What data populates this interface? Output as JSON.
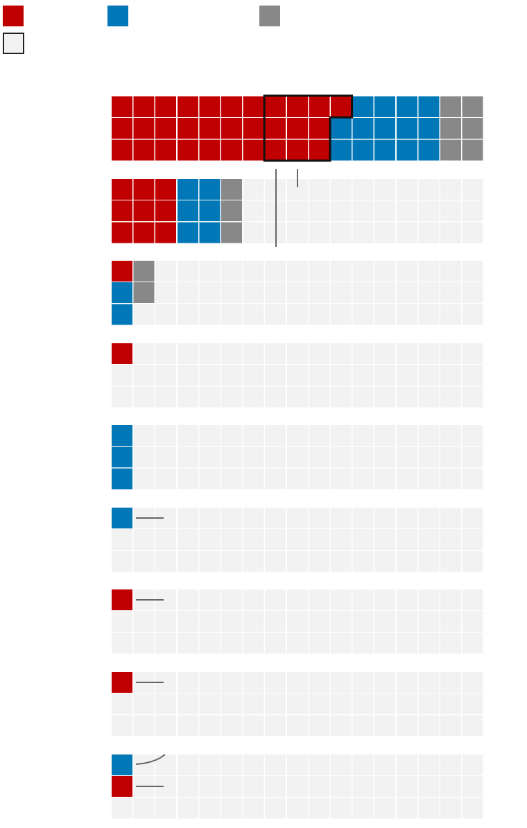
{
  "colors": {
    "party_a": "#c00000",
    "party_b": "#0077b6",
    "party_c": "#888888",
    "empty": "#f2f2f2",
    "outline": "#111111",
    "leader": "#666666"
  },
  "legend": [
    {
      "color_key": "party_a",
      "label": ""
    },
    {
      "color_key": "party_b",
      "label": ""
    },
    {
      "color_key": "party_c",
      "label": ""
    },
    {
      "color_key": "empty",
      "label": ""
    }
  ],
  "chart_data": {
    "type": "waffle",
    "columns": 17,
    "rows_per_group": 3,
    "fill_order": "column-major",
    "groups": [
      {
        "name": "",
        "segments": [
          {
            "key": "party_a",
            "count": 31
          },
          {
            "key": "party_b",
            "count": 14
          },
          {
            "key": "party_c",
            "count": 6
          }
        ]
      },
      {
        "name": "",
        "segments": [
          {
            "key": "party_a",
            "count": 9
          },
          {
            "key": "party_b",
            "count": 6
          },
          {
            "key": "party_c",
            "count": 3
          }
        ]
      },
      {
        "name": "",
        "segments": [
          {
            "key": "party_a",
            "count": 1
          },
          {
            "key": "party_b",
            "count": 2
          },
          {
            "key": "party_c",
            "count": 2
          }
        ]
      },
      {
        "name": "",
        "segments": [
          {
            "key": "party_a",
            "count": 1
          }
        ]
      },
      {
        "name": "",
        "segments": [
          {
            "key": "party_b",
            "count": 3
          }
        ]
      },
      {
        "name": "",
        "segments": [
          {
            "key": "party_b",
            "count": 1
          }
        ]
      },
      {
        "name": "",
        "segments": [
          {
            "key": "party_a",
            "count": 1
          }
        ]
      },
      {
        "name": "",
        "segments": [
          {
            "key": "party_a",
            "count": 1
          }
        ]
      },
      {
        "name": "",
        "segments": [
          {
            "key": "party_b",
            "count": 1
          },
          {
            "key": "party_a",
            "count": 1
          }
        ]
      }
    ],
    "highlight": {
      "group": 0,
      "cells": 10,
      "note": ""
    },
    "legend_position": "top-left"
  }
}
